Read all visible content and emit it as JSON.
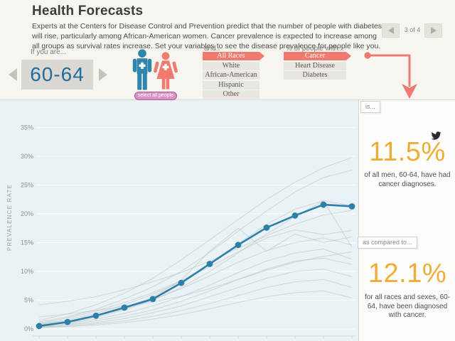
{
  "header": {
    "title": "Health Forecasts",
    "description": "Experts at the Centers for Disease Control and Prevention predict that the number of people with diabetes will rise, particularly among African-American women. Cancer prevalence is expected to increase among all groups as survival rates increase. Set your variables to see the disease prevalence for people like you.",
    "pagination": {
      "label": "3 of 4"
    }
  },
  "controls": {
    "age": {
      "label": "If you are...",
      "value": "60-64"
    },
    "gender": {
      "select_all_label": "select all people"
    },
    "race": {
      "label": "and..",
      "selected": "All Races",
      "options": [
        "All Races",
        "White",
        "African-American",
        "Hispanic",
        "Other"
      ]
    },
    "disease": {
      "label": "% of people with...",
      "selected": "Cancer",
      "options": [
        "Cancer",
        "Heart Disease",
        "Diabetes"
      ]
    }
  },
  "result_panel": {
    "is_label": "is...",
    "primary": {
      "value": "11.5%",
      "caption": "of all men, 60-64, have had cancer diagnoses."
    },
    "compare_label": "as compared to...",
    "secondary": {
      "value": "12.1%",
      "caption": "for all races and sexes, 60-64, have been diagnosed with cancer."
    }
  },
  "colors": {
    "accent_red": "#ef7a6d",
    "stat_orange": "#efac38",
    "line_blue": "#2c80a8",
    "male_blue": "#2e86ad",
    "female_red": "#ef7a6d",
    "gray_line": "#b9bec0"
  },
  "chart_data": {
    "type": "line",
    "ylabel": "PREVALENCE RATE",
    "ylim": [
      0,
      35
    ],
    "ytick_labels": [
      "0%",
      "5%",
      "10%",
      "15%",
      "20%",
      "25%",
      "30%",
      "35%"
    ],
    "x_count": 12,
    "grid": true,
    "highlight_series": {
      "name": "men, all races, cancer",
      "color": "#2c80a8",
      "values": [
        0.5,
        1.2,
        2.3,
        3.7,
        5.2,
        8.0,
        11.3,
        14.6,
        17.6,
        19.7,
        21.6,
        21.3
      ]
    },
    "background_series": [
      {
        "values": [
          1.5,
          2.6,
          4.2,
          6.2,
          8.8,
          12.0,
          15.5,
          19.0,
          22.5,
          25.5,
          28.0,
          29.8
        ]
      },
      {
        "values": [
          1.2,
          2.1,
          3.4,
          5.2,
          7.3,
          10.0,
          13.3,
          17.0,
          20.5,
          23.8,
          26.3,
          27.6
        ]
      },
      {
        "values": [
          0.9,
          1.6,
          2.7,
          4.2,
          6.0,
          8.3,
          11.2,
          14.8,
          18.2,
          20.8,
          22.3,
          21.4
        ]
      },
      {
        "values": [
          4.2,
          4.8,
          5.6,
          6.8,
          8.2,
          9.8,
          11.8,
          14.0,
          16.2,
          18.2,
          19.8,
          20.6
        ]
      },
      {
        "values": [
          0.6,
          1.1,
          2.0,
          3.3,
          5.0,
          7.2,
          10.0,
          13.2,
          16.5,
          19.5,
          22.3,
          14.2
        ]
      },
      {
        "values": [
          1.0,
          1.9,
          3.1,
          4.6,
          6.3,
          8.4,
          10.8,
          13.4,
          15.8,
          17.2,
          16.4,
          17.1
        ]
      },
      {
        "values": [
          0.7,
          1.3,
          2.2,
          3.5,
          5.1,
          7.0,
          9.2,
          11.6,
          13.6,
          15.0,
          15.8,
          14.6
        ]
      },
      {
        "values": [
          0.8,
          1.4,
          2.4,
          3.8,
          5.5,
          8.5,
          13.5,
          17.5,
          13.5,
          16.5,
          15.0,
          16.0
        ]
      },
      {
        "values": [
          0.5,
          1.0,
          1.7,
          2.7,
          4.0,
          5.6,
          7.6,
          9.8,
          11.8,
          13.2,
          13.9,
          12.1
        ]
      },
      {
        "values": [
          0.4,
          0.8,
          1.4,
          2.2,
          3.3,
          4.8,
          6.6,
          8.6,
          10.4,
          11.8,
          12.3,
          11.2
        ]
      },
      {
        "values": [
          2.1,
          2.6,
          3.2,
          3.9,
          4.7,
          5.7,
          7.0,
          8.6,
          10.2,
          11.6,
          12.6,
          13.4
        ]
      },
      {
        "values": [
          0.3,
          0.7,
          1.1,
          1.8,
          2.8,
          4.0,
          5.6,
          7.2,
          8.8,
          10.0,
          10.4,
          9.1
        ]
      },
      {
        "values": [
          0.3,
          0.5,
          0.9,
          1.4,
          2.2,
          3.2,
          4.4,
          5.8,
          7.2,
          8.2,
          8.6,
          7.2
        ]
      },
      {
        "values": [
          0.2,
          0.4,
          0.7,
          1.1,
          1.7,
          2.5,
          3.5,
          4.6,
          5.6,
          6.3,
          6.6,
          5.4
        ]
      }
    ]
  }
}
